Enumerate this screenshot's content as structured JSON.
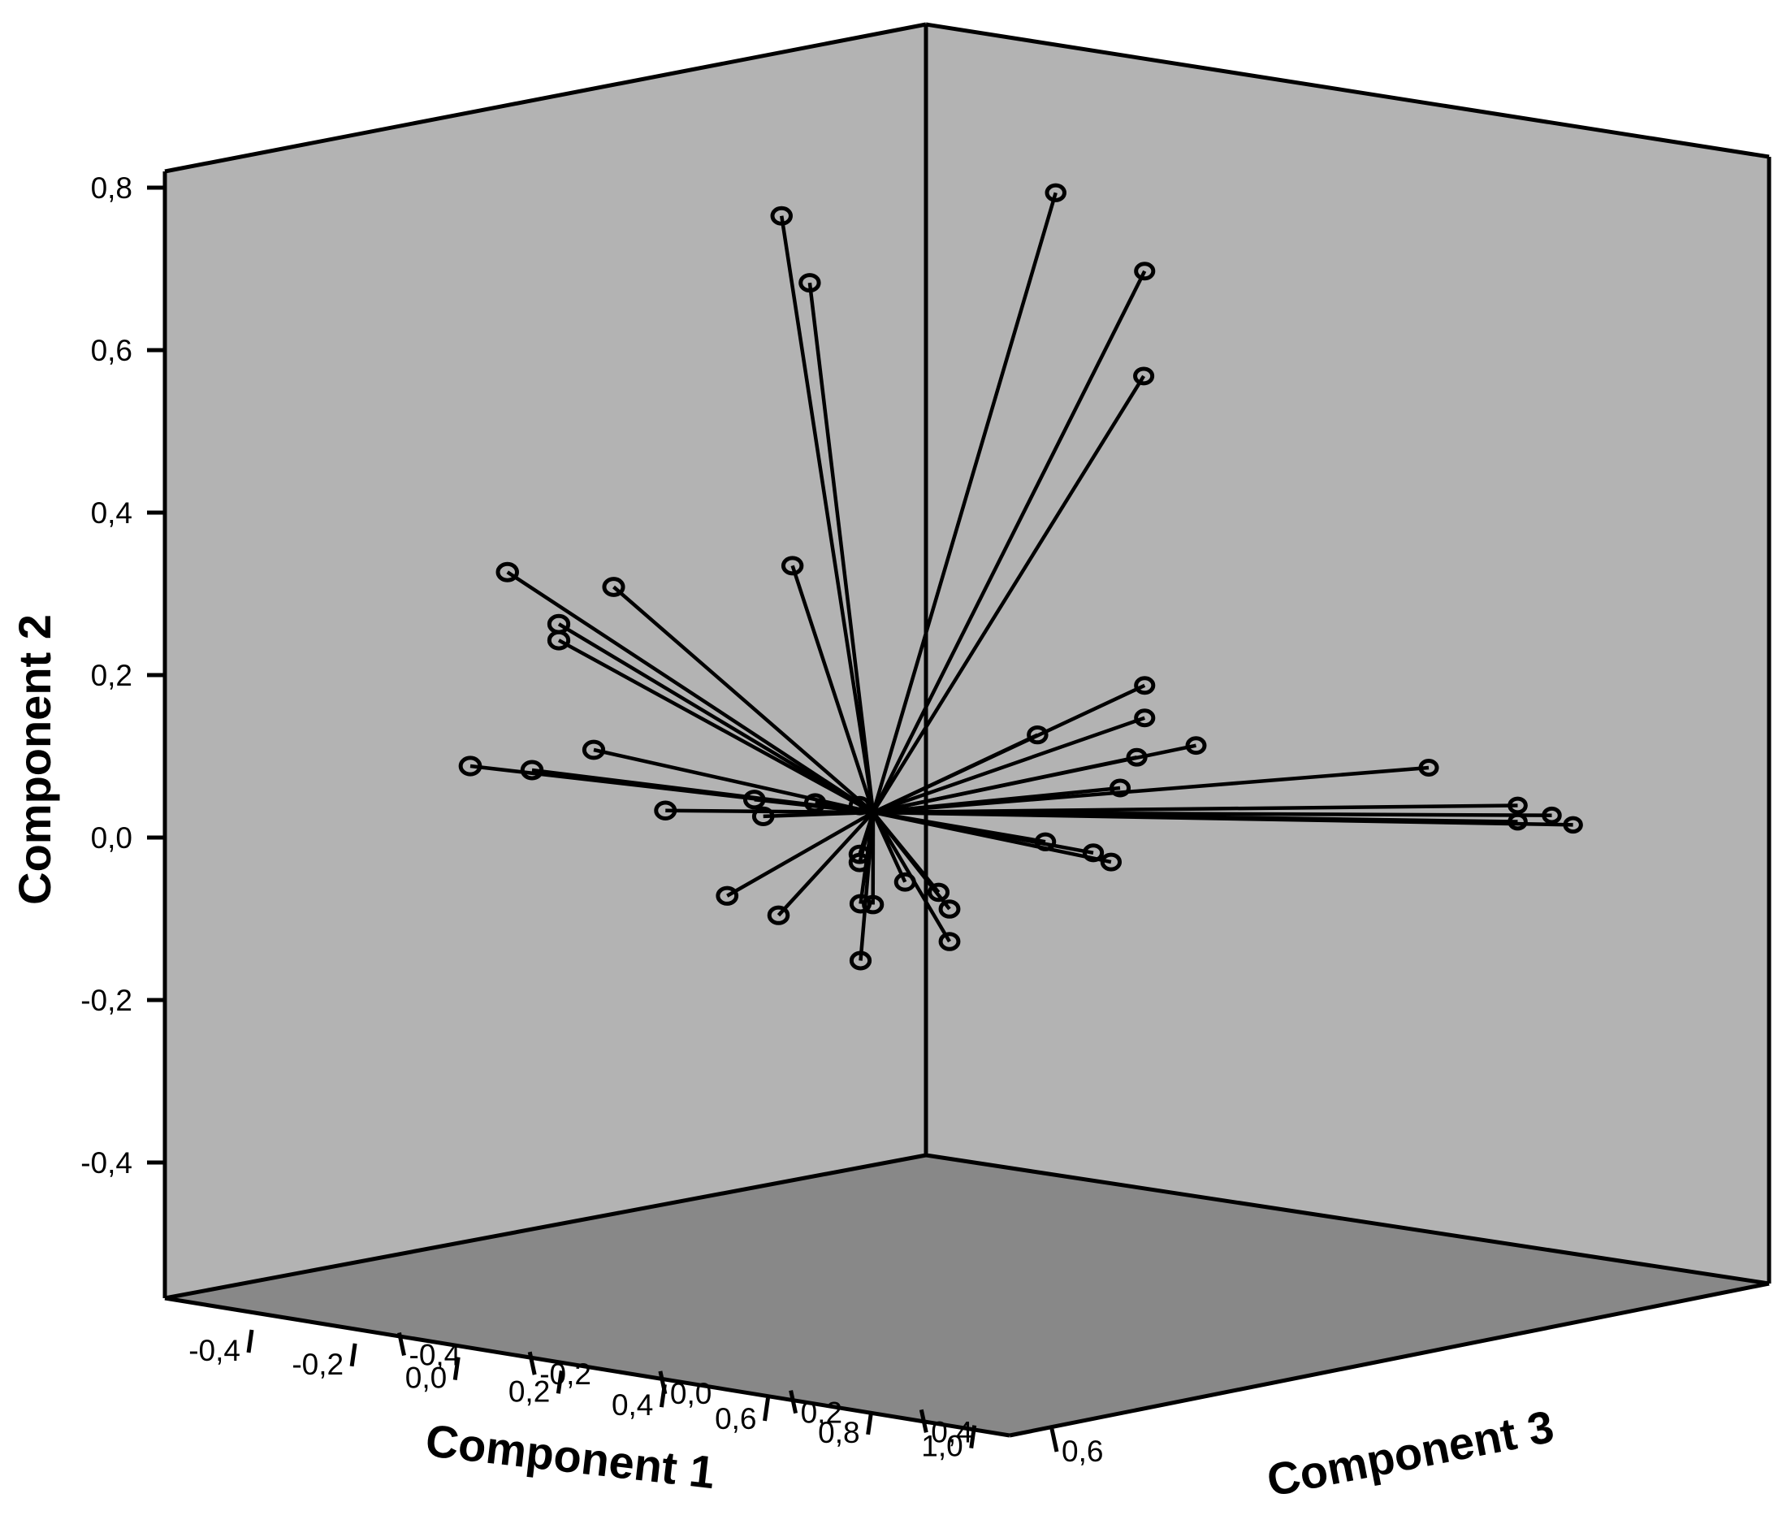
{
  "chart_data": {
    "type": "scatter",
    "subtype": "3d-loading-plot-with-origin-spikes",
    "title": "",
    "colors": {
      "back_wall_left": "#b3b3b3",
      "back_wall_right": "#b3b3b3",
      "floor": "#888888",
      "lines": "#000000",
      "background": "#ffffff"
    },
    "grid": false,
    "axes": {
      "x": {
        "label": "Component 1",
        "ticks": [
          "-0,4",
          "-0,2",
          "0,0",
          "0,2",
          "0,4",
          "0,6",
          "0,8",
          "1,0"
        ],
        "range": [
          -0.4,
          1.0
        ]
      },
      "y": {
        "label": "Component 2",
        "ticks": [
          "-0,4",
          "-0,2",
          "0,0",
          "0,2",
          "0,4",
          "0,6",
          "0,8"
        ],
        "range": [
          -0.4,
          0.8
        ]
      },
      "z": {
        "label": "Component 3",
        "ticks": [
          "-0,4",
          "-0,2",
          "0,0",
          "0,2",
          "0,4",
          "0,6"
        ],
        "range": [
          -0.4,
          0.6
        ]
      }
    },
    "points": [
      {
        "x": 0.05,
        "y": 0.73,
        "z": 0.2
      },
      {
        "x": 0.1,
        "y": 0.65,
        "z": 0.18
      },
      {
        "x": 0.45,
        "y": 0.78,
        "z": -0.05
      },
      {
        "x": 0.55,
        "y": 0.69,
        "z": -0.15
      },
      {
        "x": 0.5,
        "y": 0.56,
        "z": -0.18
      },
      {
        "x": 0.05,
        "y": 0.3,
        "z": 0.18
      },
      {
        "x": -0.35,
        "y": 0.27,
        "z": 0.45
      },
      {
        "x": -0.2,
        "y": 0.26,
        "z": 0.35
      },
      {
        "x": -0.28,
        "y": 0.21,
        "z": 0.4
      },
      {
        "x": -0.28,
        "y": 0.19,
        "z": 0.4
      },
      {
        "x": 0.55,
        "y": 0.18,
        "z": -0.15
      },
      {
        "x": 0.55,
        "y": 0.14,
        "z": -0.15
      },
      {
        "x": 0.62,
        "y": 0.11,
        "z": -0.2
      },
      {
        "x": 0.35,
        "y": 0.11,
        "z": -0.08
      },
      {
        "x": 0.48,
        "y": 0.09,
        "z": -0.18
      },
      {
        "x": 0.9,
        "y": 0.1,
        "z": -0.45
      },
      {
        "x": 1.0,
        "y": 0.06,
        "z": -0.55
      },
      {
        "x": 1.02,
        "y": 0.05,
        "z": -0.6
      },
      {
        "x": 1.0,
        "y": 0.04,
        "z": -0.55
      },
      {
        "x": 1.05,
        "y": 0.04,
        "z": -0.62
      },
      {
        "x": 0.4,
        "y": 0.05,
        "z": -0.2
      },
      {
        "x": -0.1,
        "y": 0.06,
        "z": 0.45
      },
      {
        "x": -0.3,
        "y": 0.03,
        "z": 0.55
      },
      {
        "x": -0.2,
        "y": 0.03,
        "z": 0.5
      },
      {
        "x": -0.05,
        "y": -0.01,
        "z": 0.35
      },
      {
        "x": 0.05,
        "y": 0.01,
        "z": 0.25
      },
      {
        "x": 0.06,
        "y": -0.01,
        "z": 0.24
      },
      {
        "x": 0.1,
        "y": 0.01,
        "z": 0.17
      },
      {
        "x": 0.15,
        "y": 0.01,
        "z": 0.12
      },
      {
        "x": 0.42,
        "y": -0.02,
        "z": -0.05
      },
      {
        "x": 0.48,
        "y": -0.03,
        "z": -0.1
      },
      {
        "x": 0.5,
        "y": -0.04,
        "z": -0.12
      },
      {
        "x": 0.15,
        "y": -0.05,
        "z": 0.12
      },
      {
        "x": 0.15,
        "y": -0.06,
        "z": 0.12
      },
      {
        "x": 0.05,
        "y": -0.11,
        "z": 0.3
      },
      {
        "x": 0.12,
        "y": -0.13,
        "z": 0.25
      },
      {
        "x": 0.2,
        "y": -0.11,
        "z": 0.15
      },
      {
        "x": 0.22,
        "y": -0.11,
        "z": 0.14
      },
      {
        "x": 0.25,
        "y": -0.08,
        "z": 0.1
      },
      {
        "x": 0.3,
        "y": -0.09,
        "z": 0.07
      },
      {
        "x": 0.3,
        "y": -0.11,
        "z": 0.05
      },
      {
        "x": 0.3,
        "y": -0.15,
        "z": 0.05
      },
      {
        "x": 0.2,
        "y": -0.18,
        "z": 0.15
      }
    ]
  }
}
